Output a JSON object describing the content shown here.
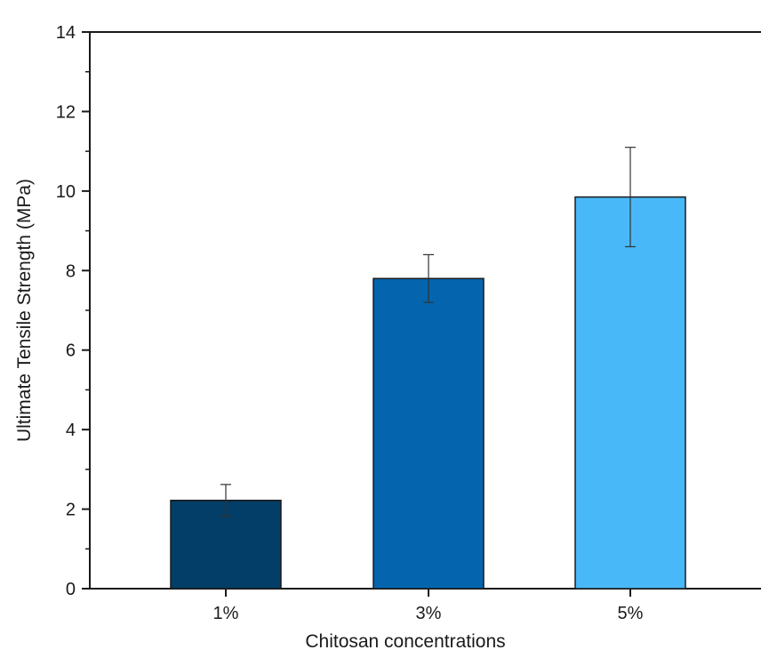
{
  "chart_data": {
    "type": "bar",
    "categories": [
      "1%",
      "3%",
      "5%"
    ],
    "values": [
      2.22,
      7.8,
      9.85
    ],
    "errors": [
      0.4,
      0.6,
      1.25
    ],
    "colors": [
      "#023e67",
      "#0465ae",
      "#49b8f8"
    ],
    "xlabel": "Chitosan concentrations",
    "ylabel": "Ultimate Tensile Strength (MPa)",
    "ylim": [
      0,
      14
    ],
    "yticks": [
      "0",
      "2",
      "4",
      "6",
      "8",
      "10",
      "12",
      "14"
    ],
    "grid": false
  }
}
